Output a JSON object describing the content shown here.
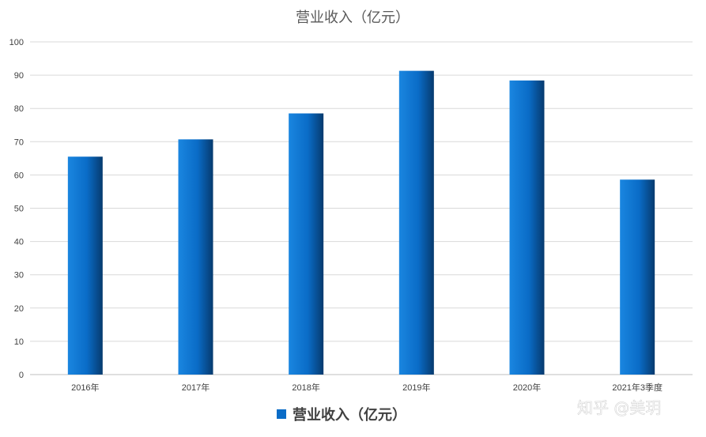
{
  "chart_data": {
    "type": "bar",
    "title": "营业收入（亿元）",
    "categories": [
      "2016年",
      "2017年",
      "2018年",
      "2019年",
      "2020年",
      "2021年3季度"
    ],
    "series": [
      {
        "name": "营业收入（亿元）",
        "values": [
          65.5,
          70.7,
          78.5,
          91.3,
          88.4,
          58.6
        ],
        "color": "#0a6cc7"
      }
    ],
    "xlabel": "",
    "ylabel": "",
    "ylim": [
      0,
      100
    ],
    "yticks": [
      0,
      10,
      20,
      30,
      40,
      50,
      60,
      70,
      80,
      90,
      100
    ],
    "grid": true,
    "legend_position": "bottom"
  },
  "colors": {
    "bar_light": "#1a86e0",
    "bar_dark": "#063a6e",
    "grid": "#d9d9d9",
    "axis": "#bfbfbf",
    "legend_swatch": "#0a6cc7"
  },
  "watermark": "知乎 @美玥"
}
